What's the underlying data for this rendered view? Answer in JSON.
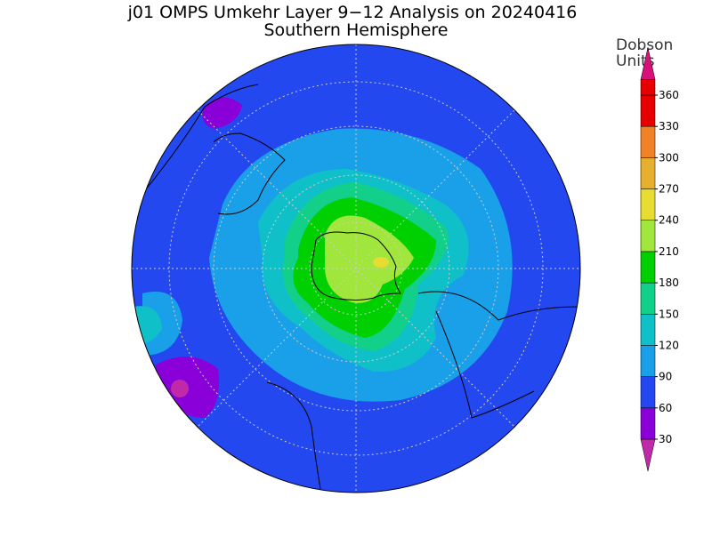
{
  "title": "j01 OMPS Umkehr Layer 9−12 Analysis on 20240416",
  "subtitle": "Southern Hemisphere",
  "colorbar": {
    "label": [
      "Dobson",
      "Units"
    ],
    "ticks": [
      30,
      60,
      90,
      120,
      150,
      180,
      210,
      240,
      270,
      300,
      330,
      360
    ],
    "colors": [
      "#c02aa8",
      "#8a00d8",
      "#2448f0",
      "#1aa0e8",
      "#10c0c8",
      "#12d08a",
      "#00d000",
      "#a0e63c",
      "#e6dc32",
      "#e6af2d",
      "#f08228",
      "#e60000",
      "#d8107a"
    ]
  }
}
